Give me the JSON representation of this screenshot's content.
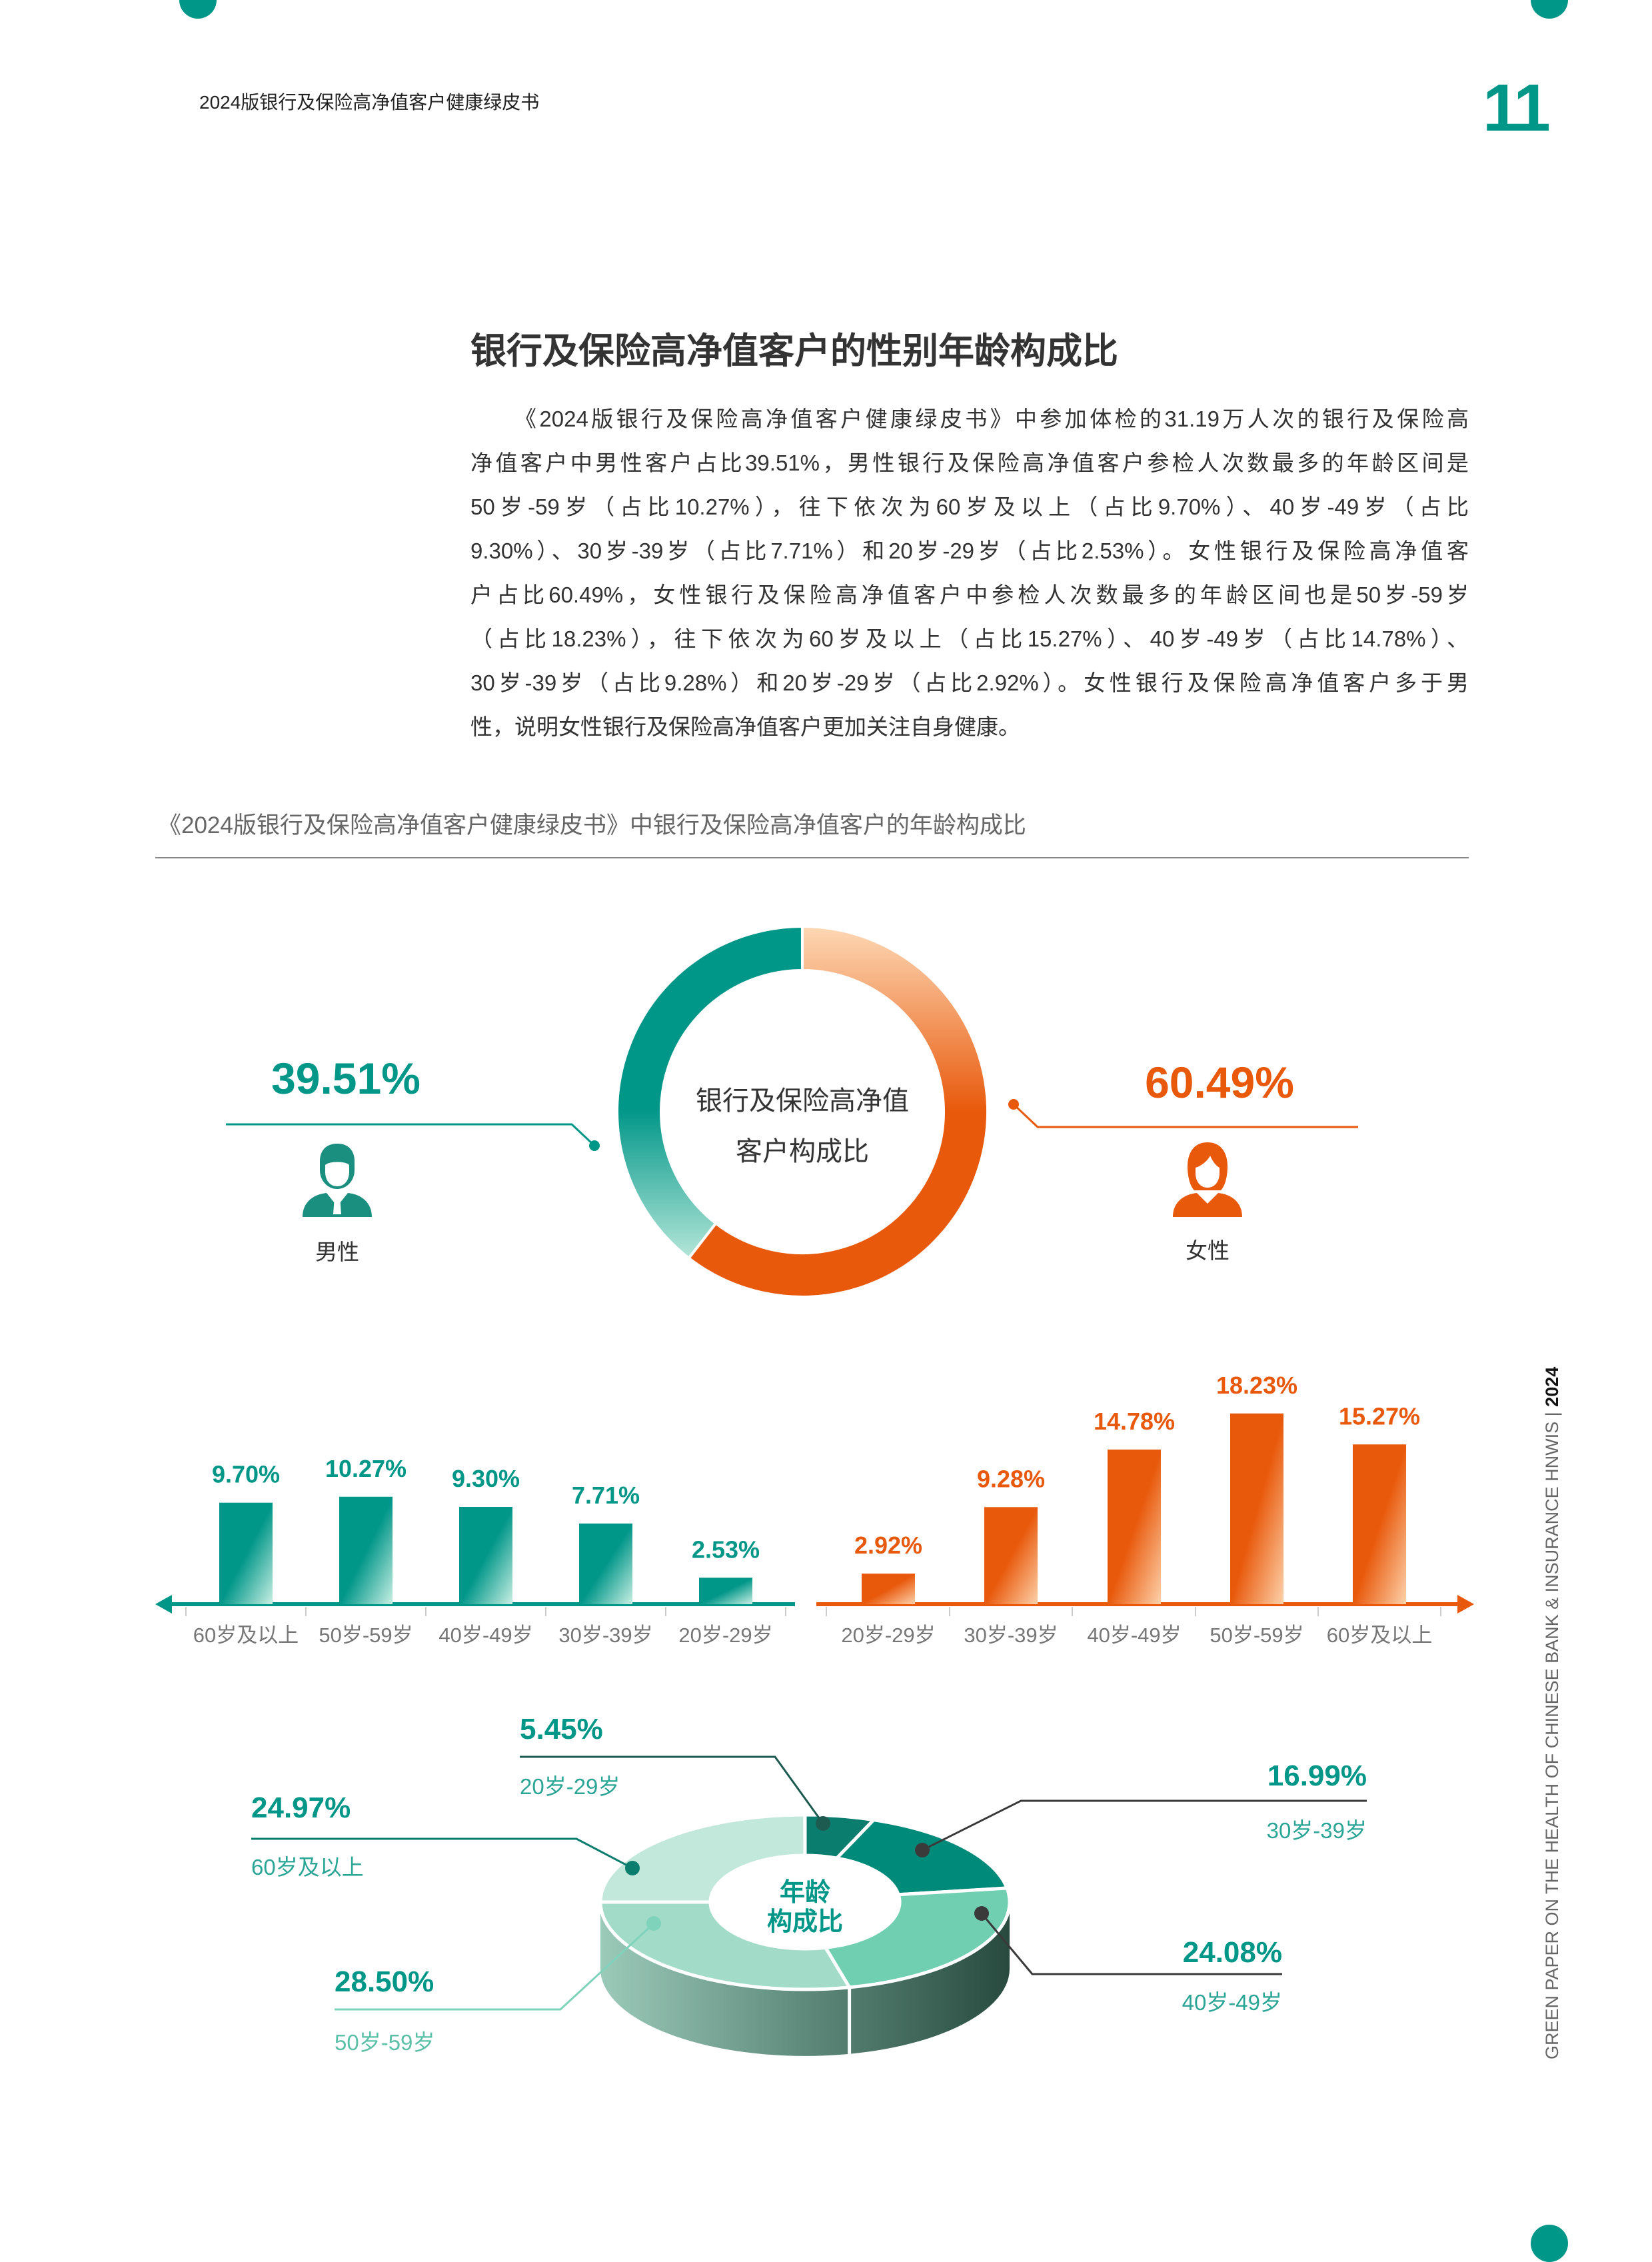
{
  "header": {
    "running_title": "2024版银行及保险高净值客户健康绿皮书",
    "page_number": "11"
  },
  "section": {
    "title": "银行及保险高净值客户的性别年龄构成比",
    "paragraph_lines": [
      "《2024版银行及保险高净值客户健康绿皮书》中参加体检的31.19万人次的银行及保险高",
      "净值客户中男性客户占比39.51%，男性银行及保险高净值客户参检人次数最多的年龄区间是",
      "50岁-59岁（占比10.27%），往下依次为60岁及以上（占比9.70%）、40岁-49岁（占比",
      "9.30%）、30岁-39岁（占比7.71%）和20岁-29岁（占比2.53%）。女性银行及保险高净值客",
      "户占比60.49%，女性银行及保险高净值客户中参检人次数最多的年龄区间也是50岁-59岁",
      "（占比18.23%），往下依次为60岁及以上（占比15.27%）、40岁-49岁（占比14.78%）、",
      "30岁-39岁（占比9.28%）和20岁-29岁（占比2.92%）。女性银行及保险高净值客户多于男",
      "性，说明女性银行及保险高净值客户更加关注自身健康。"
    ],
    "figure_caption": "《2024版银行及保险高净值客户健康绿皮书》中银行及保险高净值客户的年龄构成比"
  },
  "colors": {
    "male": "#009688",
    "female": "#e8590c",
    "accent": "#009688"
  },
  "chart_data": [
    {
      "type": "pie",
      "variant": "donut",
      "center_label_lines": [
        "银行及保险高净值",
        "客户构成比"
      ],
      "slices": [
        {
          "name": "男性",
          "value": 39.51,
          "label": "39.51%",
          "color": "#009688",
          "icon": "male-user-icon"
        },
        {
          "name": "女性",
          "value": 60.49,
          "label": "60.49%",
          "color": "#e8590c",
          "icon": "female-user-icon"
        }
      ]
    },
    {
      "type": "bar",
      "series_name": "男性",
      "direction": "right-to-left",
      "categories": [
        "60岁及以上",
        "50岁-59岁",
        "40岁-49岁",
        "30岁-39岁",
        "20岁-29岁"
      ],
      "values": [
        9.7,
        10.27,
        9.3,
        7.71,
        2.53
      ],
      "data_labels": [
        "9.70%",
        "10.27%",
        "9.30%",
        "7.71%",
        "2.53%"
      ],
      "color": "#009688"
    },
    {
      "type": "bar",
      "series_name": "女性",
      "direction": "left-to-right",
      "categories": [
        "20岁-29岁",
        "30岁-39岁",
        "40岁-49岁",
        "50岁-59岁",
        "60岁及以上"
      ],
      "values": [
        2.92,
        9.28,
        14.78,
        18.23,
        15.27
      ],
      "data_labels": [
        "2.92%",
        "9.28%",
        "14.78%",
        "18.23%",
        "15.27%"
      ],
      "color": "#e8590c"
    },
    {
      "type": "pie",
      "variant": "3d-donut",
      "center_label_lines": [
        "年龄",
        "构成比"
      ],
      "slices": [
        {
          "name": "20岁-29岁",
          "value": 5.45,
          "label": "5.45%",
          "color": "#0b7d6e"
        },
        {
          "name": "30岁-39岁",
          "value": 16.99,
          "label": "16.99%",
          "color": "#008a7a"
        },
        {
          "name": "40岁-49岁",
          "value": 24.08,
          "label": "24.08%",
          "color": "#70cfb0"
        },
        {
          "name": "50岁-59岁",
          "value": 28.5,
          "label": "28.50%",
          "color": "#a2dcc8"
        },
        {
          "name": "60岁及以上",
          "value": 24.97,
          "label": "24.97%",
          "color": "#c2e8db"
        }
      ]
    }
  ],
  "side_text": {
    "text": "GREEN PAPER ON THE HEALTH OF CHINESE BANK & INSURANCE HNWIS | ",
    "year": "2024"
  }
}
